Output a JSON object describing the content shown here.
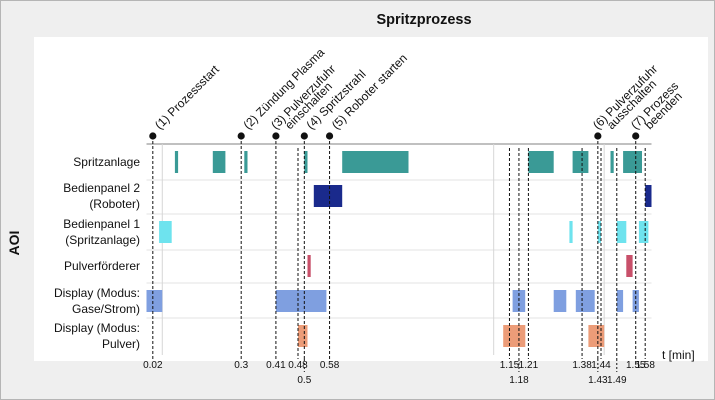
{
  "chart_data": {
    "type": "timeline",
    "title": "Spritzprozess",
    "ylabel": "AOI",
    "xlabel": "t [min]",
    "xlim": [
      0,
      1.6
    ],
    "categories": [
      "Spritzanlage",
      "Bedienpanel 2 (Roboter)",
      "Bedienpanel 1 (Spritzanlage)",
      "Pulverförderer",
      "Display (Modus: Gase/Strom)",
      "Display (Modus: Pulver)"
    ],
    "category_lines": [
      [
        "Spritzanlage"
      ],
      [
        "Bedienpanel 2",
        "(Roboter)"
      ],
      [
        "Bedienpanel 1",
        "(Spritzanlage)"
      ],
      [
        "Pulverförderer"
      ],
      [
        "Display (Modus:",
        "Gase/Strom)"
      ],
      [
        "Display (Modus:",
        "Pulver)"
      ]
    ],
    "series_colors": [
      "#3a9a96",
      "#1a2a8c",
      "#6ee3ee",
      "#c8506a",
      "#7f9fe0",
      "#ec9c78"
    ],
    "intervals": [
      [
        [
          0.09,
          0.1
        ],
        [
          0.21,
          0.25
        ],
        [
          0.31,
          0.32
        ],
        [
          0.5,
          0.51
        ],
        [
          0.62,
          0.83
        ],
        [
          1.21,
          1.29
        ],
        [
          1.35,
          1.4
        ],
        [
          1.47,
          1.48
        ],
        [
          1.51,
          1.57
        ]
      ],
      [
        [
          0.53,
          0.62
        ],
        [
          1.58,
          1.6
        ]
      ],
      [
        [
          0.04,
          0.08
        ],
        [
          1.34,
          1.35
        ],
        [
          1.43,
          1.44
        ],
        [
          1.49,
          1.52
        ],
        [
          1.56,
          1.59
        ]
      ],
      [
        [
          0.51,
          0.52
        ],
        [
          1.52,
          1.54
        ]
      ],
      [
        [
          0.0,
          0.05
        ],
        [
          0.41,
          0.57
        ],
        [
          1.16,
          1.2
        ],
        [
          1.29,
          1.33
        ],
        [
          1.36,
          1.42
        ],
        [
          1.49,
          1.51
        ],
        [
          1.54,
          1.56
        ]
      ],
      [
        [
          0.48,
          0.51
        ],
        [
          1.13,
          1.2
        ],
        [
          1.4,
          1.45
        ]
      ]
    ],
    "events": [
      {
        "t": 0.02,
        "lines": [
          "(1) Prozessstart"
        ]
      },
      {
        "t": 0.3,
        "lines": [
          "(2) Zündung Plasma"
        ]
      },
      {
        "t": 0.41,
        "lines": [
          "(3) Pulverzufuhr",
          "einschalten"
        ]
      },
      {
        "t": 0.5,
        "lines": [
          "(4) Spritzstrahl"
        ]
      },
      {
        "t": 0.58,
        "lines": [
          "(5) Roboter starten"
        ]
      },
      {
        "t": 1.43,
        "lines": [
          "(6) Pulverzufuhr",
          "ausschalten"
        ]
      },
      {
        "t": 1.55,
        "lines": [
          "(7) Prozess",
          "beenden"
        ]
      }
    ],
    "markers": [
      {
        "t": 0.02,
        "label": "0.02",
        "row": 0
      },
      {
        "t": 0.3,
        "label": "0.3",
        "row": 0
      },
      {
        "t": 0.41,
        "label": "0.41",
        "row": 0
      },
      {
        "t": 0.48,
        "label": "0.48",
        "row": 0
      },
      {
        "t": 0.5,
        "label": "0.5",
        "row": 1
      },
      {
        "t": 0.58,
        "label": "0.58",
        "row": 0
      },
      {
        "t": 1.15,
        "label": "1.15",
        "row": 0
      },
      {
        "t": 1.18,
        "label": "1.18",
        "row": 1
      },
      {
        "t": 1.21,
        "label": "1.21",
        "row": 0
      },
      {
        "t": 1.38,
        "label": "1.38",
        "row": 0
      },
      {
        "t": 1.43,
        "label": "1.43",
        "row": 1
      },
      {
        "t": 1.44,
        "label": "1.44",
        "row": 0
      },
      {
        "t": 1.49,
        "label": "1.49",
        "row": 1
      },
      {
        "t": 1.55,
        "label": "1.55",
        "row": 0
      },
      {
        "t": 1.58,
        "label": "1.58",
        "row": 0
      }
    ],
    "gridlines": [
      0.05,
      1.1,
      1.45
    ]
  }
}
